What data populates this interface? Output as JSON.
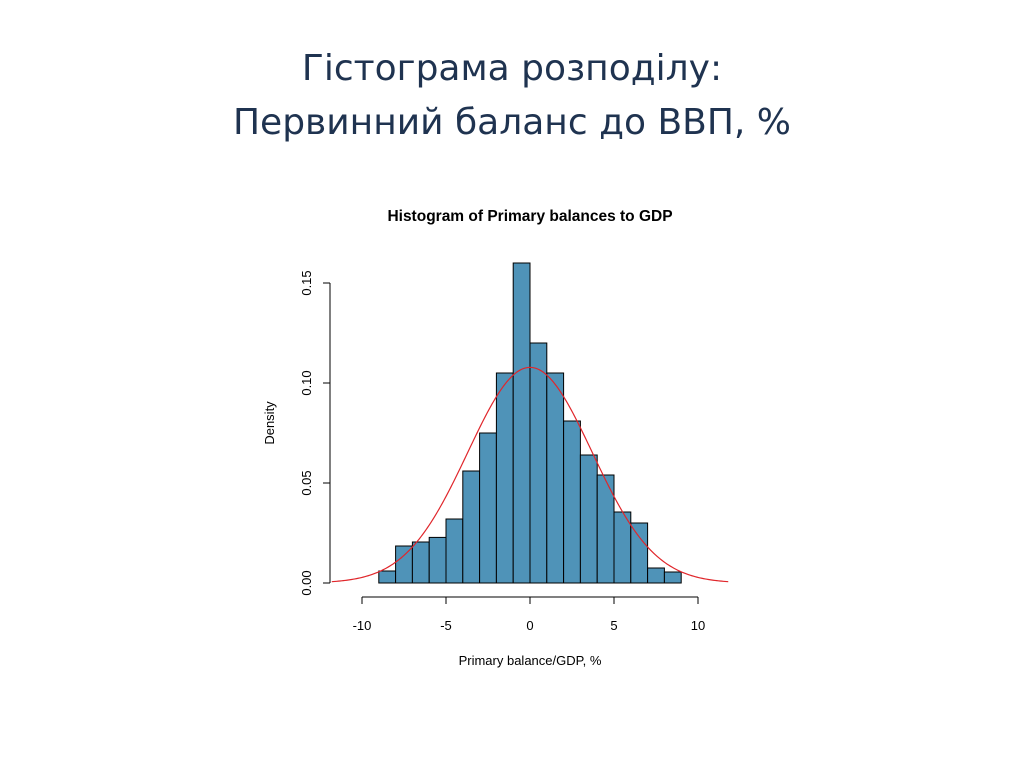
{
  "slide": {
    "title_line1": "Гістограма розподілу:",
    "title_line2": "Первинний баланс до ВВП, %"
  },
  "colors": {
    "bar_fill": "#4f93b8",
    "bar_stroke": "#000000",
    "curve": "#e0262b",
    "title_text": "#1f3350"
  },
  "chart_data": {
    "type": "bar",
    "title": "Histogram of Primary balances to GDP",
    "xlabel": "Primary balance/GDP, %",
    "ylabel": "Density",
    "x_ticks": [
      -10,
      -5,
      0,
      5,
      10
    ],
    "y_ticks": [
      0.0,
      0.05,
      0.1,
      0.15
    ],
    "y_tick_labels": [
      "0.00",
      "0.05",
      "0.10",
      "0.15"
    ],
    "xlim": [
      -11.2,
      11.8
    ],
    "ylim": [
      0,
      0.162
    ],
    "bins": [
      {
        "x0": -9,
        "x1": -8,
        "density": 0.006
      },
      {
        "x0": -8,
        "x1": -7,
        "density": 0.0185
      },
      {
        "x0": -7,
        "x1": -6,
        "density": 0.0205
      },
      {
        "x0": -6,
        "x1": -5,
        "density": 0.0228
      },
      {
        "x0": -5,
        "x1": -4,
        "density": 0.032
      },
      {
        "x0": -4,
        "x1": -3,
        "density": 0.056
      },
      {
        "x0": -3,
        "x1": -2,
        "density": 0.075
      },
      {
        "x0": -2,
        "x1": -1,
        "density": 0.105
      },
      {
        "x0": -1,
        "x1": 0,
        "density": 0.16
      },
      {
        "x0": 0,
        "x1": 1,
        "density": 0.12
      },
      {
        "x0": 1,
        "x1": 2,
        "density": 0.105
      },
      {
        "x0": 2,
        "x1": 3,
        "density": 0.081
      },
      {
        "x0": 3,
        "x1": 4,
        "density": 0.064
      },
      {
        "x0": 4,
        "x1": 5,
        "density": 0.054
      },
      {
        "x0": 5,
        "x1": 6,
        "density": 0.0355
      },
      {
        "x0": 6,
        "x1": 7,
        "density": 0.03
      },
      {
        "x0": 7,
        "x1": 8,
        "density": 0.0075
      },
      {
        "x0": 8,
        "x1": 9,
        "density": 0.0055
      }
    ],
    "density_curve": {
      "type": "normal",
      "mean": 0,
      "sd": 3.7,
      "x_range": [
        -11.8,
        11.8
      ]
    },
    "grid": false,
    "legend": "none"
  }
}
